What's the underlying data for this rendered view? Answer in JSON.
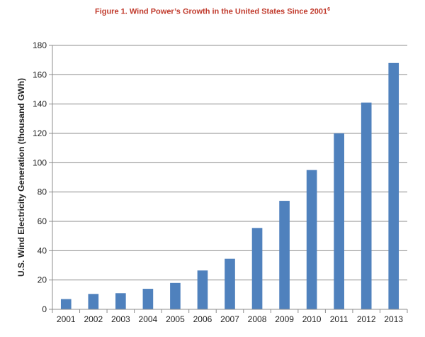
{
  "title": "Figure 1. Wind Power’s Growth in the United States Since 2001",
  "title_footnote": "6",
  "chart_data": {
    "type": "bar",
    "title": "Figure 1. Wind Power’s Growth in the United States Since 2001",
    "xlabel": "",
    "ylabel": "U.S. Wind Electricity Generation (thousand GWh)",
    "categories": [
      "2001",
      "2002",
      "2003",
      "2004",
      "2005",
      "2006",
      "2007",
      "2008",
      "2009",
      "2010",
      "2011",
      "2012",
      "2013"
    ],
    "values": [
      7,
      10.5,
      11,
      14,
      18,
      26.5,
      34.5,
      55.5,
      74,
      95,
      120,
      141,
      168
    ],
    "ylim": [
      0,
      180
    ],
    "yticks": [
      0,
      20,
      40,
      60,
      80,
      100,
      120,
      140,
      160,
      180
    ],
    "grid": true,
    "legend": "none",
    "colors": {
      "bar": "#4f81bd",
      "grid": "#8c8c8c",
      "title": "#c0392b"
    }
  }
}
